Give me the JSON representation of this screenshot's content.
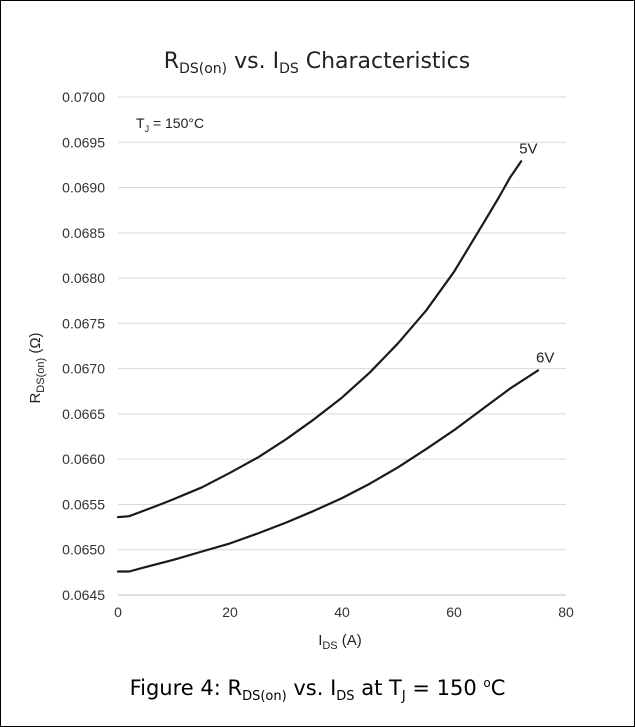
{
  "chart_data": {
    "type": "line",
    "title": {
      "main": "R",
      "sub": "DS(on)",
      "mid": " vs. I",
      "sub2": "DS",
      "tail": " Characteristics"
    },
    "ylabel": {
      "main": "R",
      "sub": "DS(on)",
      "tail": " (Ω)"
    },
    "xlabel": {
      "main": "I",
      "sub": "DS",
      "tail": " (A)"
    },
    "annotation": {
      "main": "T",
      "sub": "J",
      "tail": " = 150°C"
    },
    "xlim": [
      0,
      80
    ],
    "ylim": [
      0.0645,
      0.07
    ],
    "xticks": [
      0,
      20,
      40,
      60,
      80
    ],
    "xtick_labels": [
      "0",
      "20",
      "40",
      "60",
      "80"
    ],
    "yticks": [
      0.0645,
      0.065,
      0.0655,
      0.066,
      0.0665,
      0.067,
      0.0675,
      0.068,
      0.0685,
      0.069,
      0.0695,
      0.07
    ],
    "ytick_labels": [
      "0.0645",
      "0.0650",
      "0.0655",
      "0.0660",
      "0.0665",
      "0.0670",
      "0.0675",
      "0.0680",
      "0.0685",
      "0.0690",
      "0.0695",
      "0.0700"
    ],
    "grid": "horizontal",
    "series": [
      {
        "name": "5V",
        "x": [
          0,
          2,
          5,
          8,
          10,
          15,
          20,
          25,
          30,
          35,
          40,
          45,
          50,
          55,
          60,
          65,
          68,
          70,
          72
        ],
        "y": [
          0.06536,
          0.06537,
          0.06544,
          0.06551,
          0.06556,
          0.06569,
          0.06585,
          0.06602,
          0.06622,
          0.06644,
          0.06668,
          0.06696,
          0.06728,
          0.06764,
          0.06807,
          0.06858,
          0.06889,
          0.06911,
          0.06929
        ]
      },
      {
        "name": "6V",
        "x": [
          0,
          2,
          5,
          10,
          15,
          20,
          25,
          30,
          35,
          40,
          45,
          50,
          55,
          60,
          65,
          70,
          75
        ],
        "y": [
          0.06476,
          0.06476,
          0.06481,
          0.06489,
          0.06498,
          0.06507,
          0.06518,
          0.0653,
          0.06543,
          0.06557,
          0.06573,
          0.06591,
          0.06611,
          0.06632,
          0.06655,
          0.06678,
          0.06698
        ]
      }
    ]
  },
  "caption": {
    "prefix": "Figure 4: R",
    "sub1": "DS(on)",
    "mid": " vs. I",
    "sub2": "DS",
    "mid2": "  at T",
    "sub3": "J",
    "mid3": " = 150 ",
    "sup": "o",
    "suffix": "C"
  }
}
